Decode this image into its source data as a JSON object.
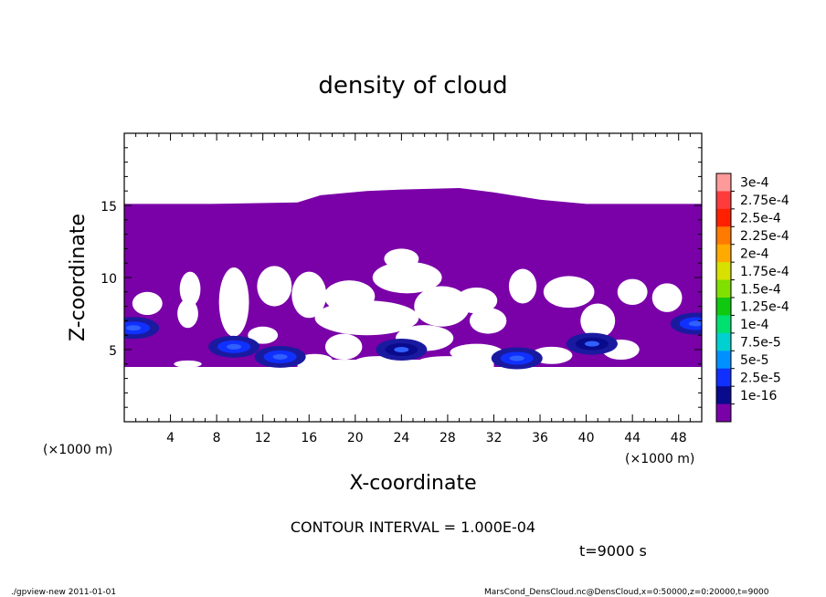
{
  "chart_data": {
    "type": "heatmap",
    "title": "density of cloud",
    "xlabel": "X-coordinate",
    "ylabel": "Z-coordinate",
    "x_unit": "(×1000 m)",
    "z_unit": "(×1000 m)",
    "xlim": [
      0,
      50
    ],
    "ylim": [
      0,
      20
    ],
    "x_ticks": [
      "4",
      "8",
      "12",
      "16",
      "20",
      "24",
      "28",
      "32",
      "36",
      "40",
      "44",
      "48"
    ],
    "y_ticks": [
      "5",
      "10",
      "15"
    ],
    "colorbar": {
      "labels": [
        "3e-4",
        "2.75e-4",
        "2.5e-4",
        "2.25e-4",
        "2e-4",
        "1.75e-4",
        "1.5e-4",
        "1.25e-4",
        "1e-4",
        "7.5e-5",
        "5e-5",
        "2.5e-5",
        "1e-16"
      ],
      "colors": [
        "#ff9a9a",
        "#ff3c3c",
        "#ff2000",
        "#ff7a00",
        "#ffaa00",
        "#d8e000",
        "#80e000",
        "#10c810",
        "#00e070",
        "#00d0d0",
        "#0090ff",
        "#1030ff",
        "#0a0a8c",
        "#7a00a8"
      ]
    },
    "contour_interval": "CONTOUR INTERVAL = 1.000E-04",
    "time": "t=9000 s",
    "cloud_layer": {
      "top_z": [
        15.1,
        15.1,
        15.2,
        15.7,
        16.0,
        16.1,
        16.2,
        15.9,
        15.4,
        15.1,
        15.1
      ],
      "top_x": [
        0,
        7.5,
        15,
        17,
        21,
        24,
        29,
        32,
        36,
        40,
        50
      ],
      "base_z": 3.8
    },
    "cores": [
      {
        "x": 0.8,
        "z": 6.5,
        "level": "5e-5"
      },
      {
        "x": 9.5,
        "z": 5.2,
        "level": "5e-5"
      },
      {
        "x": 13.5,
        "z": 4.5,
        "level": "5e-5"
      },
      {
        "x": 34,
        "z": 4.4,
        "level": "5e-5"
      },
      {
        "x": 24,
        "z": 5.0,
        "level": "2.5e-5"
      },
      {
        "x": 40.5,
        "z": 5.4,
        "level": "2.5e-5"
      },
      {
        "x": 49.5,
        "z": 6.8,
        "level": "5e-5"
      }
    ]
  },
  "footer": {
    "left": "./gpview-new   2011-01-01",
    "right": "MarsCond_DensCloud.nc@DensCloud,x=0:50000,z=0:20000,t=9000"
  }
}
